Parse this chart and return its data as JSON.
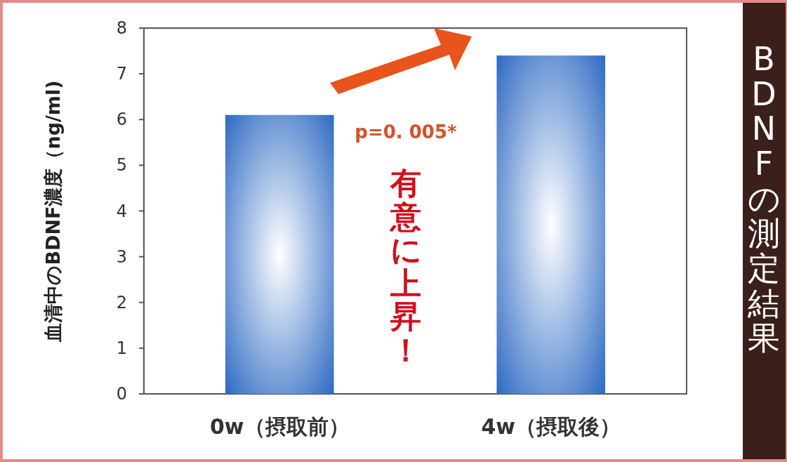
{
  "chart_data": {
    "type": "bar",
    "title": "BDNFの測定結果",
    "ylabel": "血清中のBDNF濃度（ng/ml)",
    "categories": [
      "0w（摂取前）",
      "4w（摂取後）"
    ],
    "values": [
      6.1,
      7.4
    ],
    "color": "#2f6bc4",
    "ylim": [
      0,
      8
    ],
    "yticks": [
      0,
      1,
      2,
      3,
      4,
      5,
      6,
      7,
      8
    ],
    "grid": false,
    "annotations": [
      "p=0. 005*",
      "有意に上昇！"
    ]
  }
}
